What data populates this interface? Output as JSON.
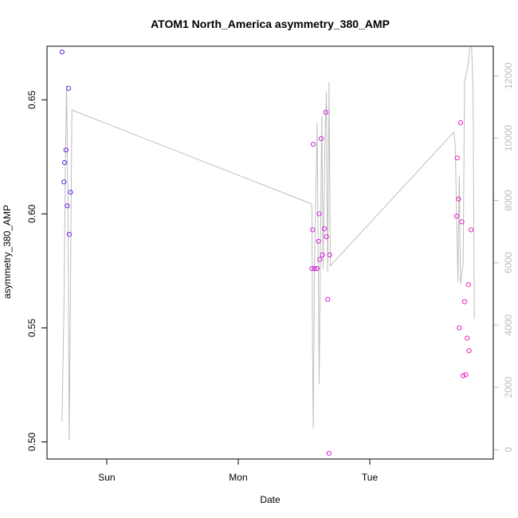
{
  "chart_data": {
    "type": "scatter",
    "title": "ATOM1 North_America asymmetry_380_AMP",
    "xlabel": "Date",
    "ylabel": "asymmetry_380_AMP",
    "x_ticks": [
      "Sun",
      "Mon",
      "Tue"
    ],
    "y_ticks": [
      "0.50",
      "0.55",
      "0.60",
      "0.65"
    ],
    "y2_ticks": [
      "0",
      "2000",
      "4000",
      "6000",
      "8000",
      "10000",
      "12000"
    ],
    "ylim": [
      0.4925,
      0.6735
    ],
    "y2lim": [
      -300,
      12950
    ],
    "x_unit": "days since Sat 00:00 (Sun=1, Mon=2, Tue=3)",
    "xlim": [
      0.546,
      3.939
    ],
    "grid": false,
    "legend": "none",
    "colors": {
      "line": "#bebebe",
      "axis": "#000000",
      "right_axis": "#bdbdbd"
    },
    "series": [
      {
        "kind": "points",
        "points": [
          {
            "x": 0.66,
            "y": 0.671,
            "color": "#6020f0"
          },
          {
            "x": 0.675,
            "y": 0.614,
            "color": "#6120f0"
          },
          {
            "x": 0.68,
            "y": 0.6225,
            "color": "#6320ef"
          },
          {
            "x": 0.69,
            "y": 0.628,
            "color": "#6620ee"
          },
          {
            "x": 0.7,
            "y": 0.6035,
            "color": "#6a20ed"
          },
          {
            "x": 0.71,
            "y": 0.655,
            "color": "#6e20ec"
          },
          {
            "x": 0.715,
            "y": 0.591,
            "color": "#7020eb"
          },
          {
            "x": 0.725,
            "y": 0.6095,
            "color": "#7320ea"
          },
          {
            "x": 2.56,
            "y": 0.576,
            "color": "#cf20dc"
          },
          {
            "x": 2.565,
            "y": 0.593,
            "color": "#cf20dc"
          },
          {
            "x": 2.57,
            "y": 0.6305,
            "color": "#d020db"
          },
          {
            "x": 2.58,
            "y": 0.576,
            "color": "#d020db"
          },
          {
            "x": 2.6,
            "y": 0.576,
            "color": "#d120da"
          },
          {
            "x": 2.61,
            "y": 0.588,
            "color": "#d120da"
          },
          {
            "x": 2.615,
            "y": 0.6,
            "color": "#d220d9"
          },
          {
            "x": 2.62,
            "y": 0.58,
            "color": "#d220d9"
          },
          {
            "x": 2.63,
            "y": 0.633,
            "color": "#d320d8"
          },
          {
            "x": 2.64,
            "y": 0.582,
            "color": "#d320d8"
          },
          {
            "x": 2.655,
            "y": 0.5935,
            "color": "#d420d7"
          },
          {
            "x": 2.665,
            "y": 0.6445,
            "color": "#d420d7"
          },
          {
            "x": 2.67,
            "y": 0.59,
            "color": "#d520d6"
          },
          {
            "x": 2.68,
            "y": 0.5625,
            "color": "#d520d6"
          },
          {
            "x": 2.69,
            "y": 0.495,
            "color": "#d620d5"
          },
          {
            "x": 2.695,
            "y": 0.582,
            "color": "#d620d5"
          },
          {
            "x": 3.66,
            "y": 0.599,
            "color": "#ee20c0"
          },
          {
            "x": 3.665,
            "y": 0.6245,
            "color": "#ee20c0"
          },
          {
            "x": 3.675,
            "y": 0.6065,
            "color": "#ef20bf"
          },
          {
            "x": 3.68,
            "y": 0.55,
            "color": "#ef20bf"
          },
          {
            "x": 3.69,
            "y": 0.64,
            "color": "#f020be"
          },
          {
            "x": 3.7,
            "y": 0.5965,
            "color": "#f020be"
          },
          {
            "x": 3.71,
            "y": 0.529,
            "color": "#f020bd"
          },
          {
            "x": 3.72,
            "y": 0.5615,
            "color": "#f120bc"
          },
          {
            "x": 3.73,
            "y": 0.5295,
            "color": "#f120bc"
          },
          {
            "x": 3.74,
            "y": 0.5455,
            "color": "#f120bb"
          },
          {
            "x": 3.75,
            "y": 0.569,
            "color": "#f220ba"
          },
          {
            "x": 3.755,
            "y": 0.54,
            "color": "#f220ba"
          },
          {
            "x": 3.77,
            "y": 0.593,
            "color": "#f220b9"
          }
        ]
      },
      {
        "kind": "line",
        "axis": "right",
        "points": [
          [
            0.66,
            900
          ],
          [
            0.675,
            4600
          ],
          [
            0.685,
            9000
          ],
          [
            0.695,
            11700
          ],
          [
            0.705,
            8000
          ],
          [
            0.715,
            300
          ],
          [
            0.735,
            10900
          ],
          [
            2.55,
            7900
          ],
          [
            2.56,
            7800
          ],
          [
            2.565,
            3300
          ],
          [
            2.57,
            700
          ],
          [
            2.58,
            6000
          ],
          [
            2.6,
            10500
          ],
          [
            2.615,
            2100
          ],
          [
            2.625,
            6500
          ],
          [
            2.635,
            10700
          ],
          [
            2.645,
            5800
          ],
          [
            2.66,
            10000
          ],
          [
            2.67,
            11500
          ],
          [
            2.675,
            7900
          ],
          [
            2.68,
            5700
          ],
          [
            2.69,
            11800
          ],
          [
            2.7,
            5900
          ],
          [
            3.64,
            10200
          ],
          [
            3.65,
            9700
          ],
          [
            3.67,
            5400
          ],
          [
            3.68,
            8800
          ],
          [
            3.69,
            5300
          ],
          [
            3.71,
            6000
          ],
          [
            3.72,
            11800
          ],
          [
            3.75,
            12400
          ],
          [
            3.76,
            12900
          ],
          [
            3.775,
            12900
          ],
          [
            3.785,
            11500
          ],
          [
            3.795,
            4200
          ]
        ]
      }
    ]
  }
}
